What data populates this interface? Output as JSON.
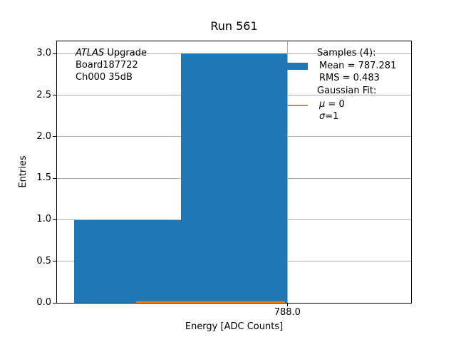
{
  "title": "Run 561",
  "axes": {
    "x_label": "Energy [ADC Counts]",
    "y_label": "Entries"
  },
  "annotation": {
    "line1_italic": "ATLAS",
    "line1_rest": " Upgrade",
    "line2": "Board187722",
    "line3": "Ch000 35dB"
  },
  "legend": {
    "samples_header": "Samples (4):",
    "mean_label": "Mean = 787.281",
    "rms_label": "RMS = 0.483",
    "fit_header": "Gaussian Fit:",
    "mu_symbol": "μ",
    "mu_rest": " = 0",
    "sigma_symbol": "σ",
    "sigma_rest": "=1"
  },
  "colors": {
    "hist": "#1f77b4",
    "fit": "#ff7f0e",
    "grid": "#b0b0b0",
    "spine": "#000000"
  },
  "chart_data": {
    "type": "bar",
    "subtype": "histogram",
    "title": "Run 561",
    "xlabel": "Energy [ADC Counts]",
    "ylabel": "Entries",
    "xlim": [
      786.92,
      788.58
    ],
    "ylim": [
      0,
      3.15
    ],
    "grid": true,
    "legend_position": "upper right",
    "bin_edges": [
      787.0,
      787.5,
      788.0
    ],
    "counts": [
      1,
      3
    ],
    "y_ticks": [
      0.0,
      0.5,
      1.0,
      1.5,
      2.0,
      2.5,
      3.0
    ],
    "y_tick_labels": [
      "0.0",
      "0.5",
      "1.0",
      "1.5",
      "2.0",
      "2.5",
      "3.0"
    ],
    "x_ticks": [
      788.0
    ],
    "x_tick_labels": [
      "788.0"
    ],
    "fit_line": {
      "x_start": 787.29,
      "x_end": 787.99,
      "y": 0.012
    },
    "series": [
      {
        "name": "Samples (4): Mean = 787.281, RMS = 0.483",
        "type": "histogram",
        "color": "#1f77b4"
      },
      {
        "name": "Gaussian Fit: μ = 0, σ=1",
        "type": "line",
        "color": "#ff7f0e"
      }
    ],
    "stats": {
      "samples": 4,
      "mean": 787.281,
      "rms": 0.483,
      "fit_mu": 0,
      "fit_sigma": 1
    }
  }
}
